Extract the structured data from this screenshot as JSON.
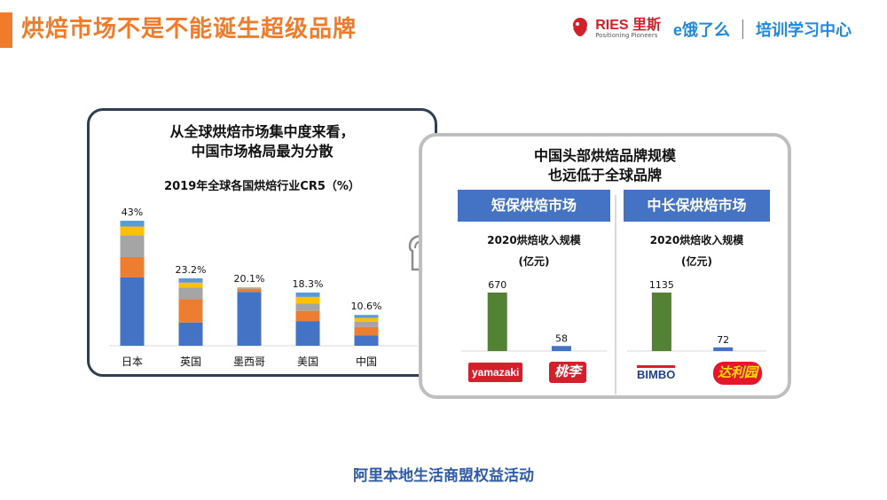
{
  "header": {
    "title": "烘焙市场不是不能诞生超级品牌",
    "logos": {
      "ries_text": "RIES 里斯",
      "ries_sub": "Positioning Pioneers",
      "eleme_text": "饿了么",
      "training_text": "培训学习中心"
    }
  },
  "left_panel": {
    "heading_line1": "从全球烘焙市场集中度来看，",
    "heading_line2": "中国市场格局最为分散",
    "chart_title": "2019年全球各国烘焙行业CR5（%）"
  },
  "right_panel": {
    "heading_line1": "中国头部烘焙品牌规模",
    "heading_line2": "也远低于全球品牌",
    "market_short": "短保烘焙市场",
    "market_long": "中长保烘焙市场",
    "revenue_label_line1": "2020烘焙收入规模",
    "revenue_label_line2": "(亿元)",
    "brands": {
      "yamazaki": "yamazaki",
      "taoli": "桃李",
      "bimbo": "BIMBO",
      "daliyuan": "达利园"
    }
  },
  "footer": {
    "text": "阿里本地生活商盟权益活动"
  },
  "colors": {
    "accent_orange": "#f07b2a",
    "bar_blue": "#4472c4",
    "bar_orange": "#ed7d31",
    "bar_gray": "#a5a5a5",
    "bar_yellow": "#ffc000",
    "bar_lightblue": "#5b9bd5",
    "bar_green": "#548235",
    "footer_blue": "#2f5aa8"
  },
  "chart_data": [
    {
      "type": "bar",
      "stacked": true,
      "title": "2019年全球各国烘焙行业CR5（%）",
      "categories": [
        "日本",
        "英国",
        "墨西哥",
        "美国",
        "中国"
      ],
      "totals": [
        43,
        23.2,
        20.1,
        18.3,
        10.6
      ],
      "total_labels": [
        "43%",
        "23.2%",
        "20.1%",
        "18.3%",
        "10.6%"
      ],
      "series": [
        {
          "values": [
            23.5,
            8.0,
            18.5,
            8.5,
            3.5
          ],
          "color": "#4472c4"
        },
        {
          "values": [
            7.0,
            8.0,
            1.0,
            3.5,
            3.0
          ],
          "color": "#ed7d31"
        },
        {
          "values": [
            7.5,
            4.0,
            0.3,
            2.5,
            1.8
          ],
          "color": "#a5a5a5"
        },
        {
          "values": [
            3.0,
            1.7,
            0.2,
            2.3,
            1.3
          ],
          "color": "#ffc000"
        },
        {
          "values": [
            2.0,
            1.5,
            0.1,
            1.5,
            1.0
          ],
          "color": "#5b9bd5"
        }
      ],
      "ylim": [
        0,
        43
      ]
    },
    {
      "type": "bar",
      "title": "2020烘焙收入规模(亿元)",
      "categories": [
        "yamazaki",
        "桃李"
      ],
      "values": [
        670,
        58
      ],
      "colors": [
        "#548235",
        "#4472c4"
      ],
      "ylim": [
        0,
        670
      ]
    },
    {
      "type": "bar",
      "title": "2020烘焙收入规模(亿元)",
      "categories": [
        "BIMBO",
        "达利园"
      ],
      "values": [
        1135,
        72
      ],
      "colors": [
        "#548235",
        "#4472c4"
      ],
      "ylim": [
        0,
        1135
      ]
    }
  ]
}
